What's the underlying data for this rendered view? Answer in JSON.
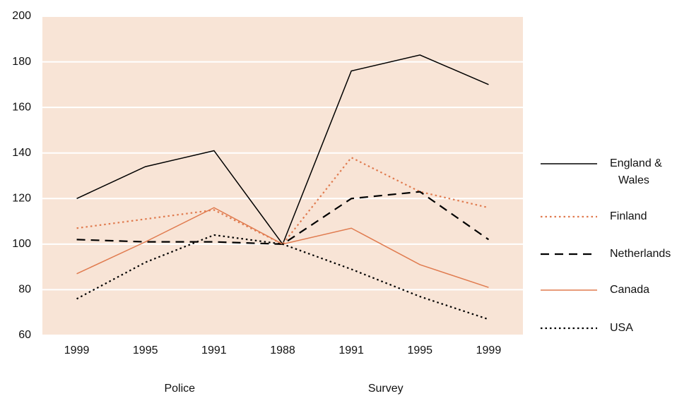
{
  "chart_data": {
    "type": "line",
    "categories": [
      "1999",
      "1995",
      "1991",
      "1988",
      "1991",
      "1995",
      "1999"
    ],
    "annotations": [
      "Police",
      "Survey"
    ],
    "series": [
      {
        "name": "England & Wales",
        "color": "#000000",
        "dash": "solid",
        "values": [
          120,
          134,
          141,
          100,
          176,
          183,
          170
        ]
      },
      {
        "name": "Finland",
        "color": "#e07b4f",
        "dash": "dotted",
        "values": [
          107,
          111,
          115,
          100,
          138,
          123,
          116
        ]
      },
      {
        "name": "Netherlands",
        "color": "#000000",
        "dash": "dashed",
        "values": [
          102,
          101,
          101,
          100,
          120,
          123,
          102
        ]
      },
      {
        "name": "Canada",
        "color": "#e07b4f",
        "dash": "solid",
        "values": [
          87,
          101,
          116,
          100,
          107,
          91,
          81
        ]
      },
      {
        "name": "USA",
        "color": "#000000",
        "dash": "dotted",
        "values": [
          76,
          92,
          104,
          100,
          89,
          77,
          67
        ]
      }
    ],
    "ylim": [
      60,
      200
    ],
    "yticks": [
      60,
      80,
      100,
      120,
      140,
      160,
      180,
      200
    ],
    "grid": true,
    "background": "#f8e4d6",
    "legend": "right"
  }
}
